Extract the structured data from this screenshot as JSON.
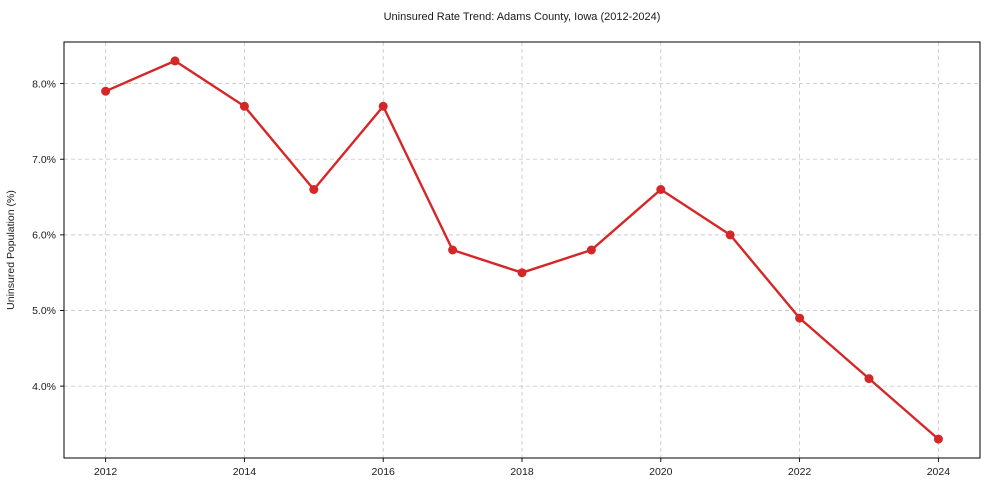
{
  "title": "Uninsured Rate Trend: Adams County, Iowa (2012-2024)",
  "chart_data": {
    "type": "line",
    "title": "Uninsured Rate Trend: Adams County, Iowa (2012-2024)",
    "xlabel": "",
    "ylabel": "Uninsured Population (%)",
    "x": [
      2012,
      2013,
      2014,
      2015,
      2016,
      2017,
      2018,
      2019,
      2020,
      2021,
      2022,
      2023,
      2024
    ],
    "values": [
      7.9,
      8.3,
      7.7,
      6.6,
      7.7,
      5.8,
      5.5,
      5.8,
      6.6,
      6.0,
      4.9,
      4.1,
      3.3
    ],
    "xticks": [
      2012,
      2014,
      2016,
      2018,
      2020,
      2022,
      2024
    ],
    "xtick_labels": [
      "2012",
      "2014",
      "2016",
      "2018",
      "2020",
      "2022",
      "2024"
    ],
    "yticks": [
      4.0,
      5.0,
      6.0,
      7.0,
      8.0
    ],
    "ytick_labels": [
      "4.0%",
      "5.0%",
      "6.0%",
      "7.0%",
      "8.0%"
    ],
    "xlim": [
      2011.4,
      2024.6
    ],
    "ylim": [
      3.05,
      8.55
    ],
    "grid": true,
    "legend": "none",
    "colors": {
      "line": "#d62728",
      "marker": "#d62728",
      "grid": "#cccccc",
      "spine": "#000000",
      "text": "#1a1a1a"
    }
  }
}
